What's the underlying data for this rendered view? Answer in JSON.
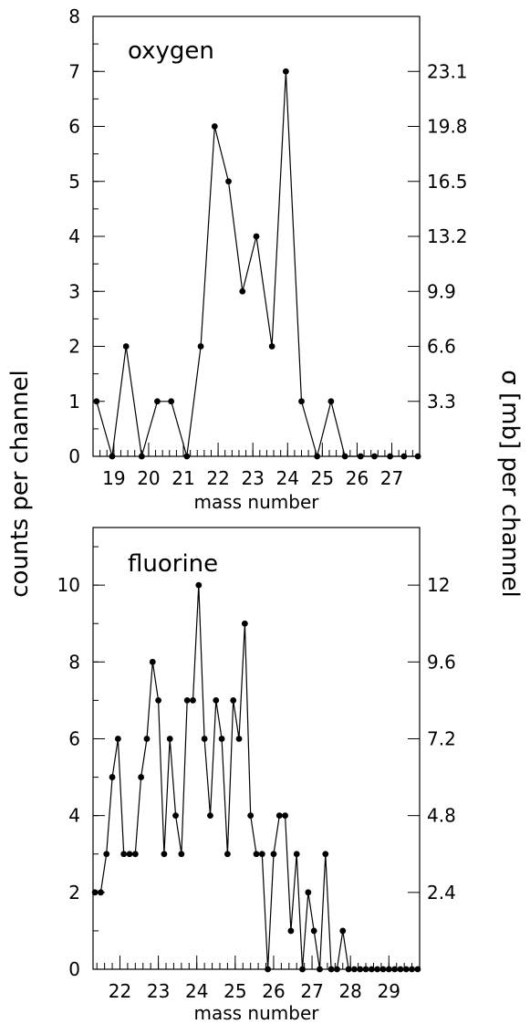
{
  "figure": {
    "left_axis_title": "counts per channel",
    "right_axis_title": "σ [mb] per channel"
  },
  "chart_data": [
    {
      "type": "line",
      "title": "oxygen",
      "xlabel": "mass number",
      "ylabel": "counts per channel",
      "y2label": "σ [mb] per channel",
      "xlim": [
        18.4,
        27.8
      ],
      "ylim": [
        0,
        8
      ],
      "x_ticks": [
        19,
        20,
        21,
        22,
        23,
        24,
        25,
        26,
        27
      ],
      "y_ticks": [
        0,
        1,
        2,
        3,
        4,
        5,
        6,
        7,
        8
      ],
      "y2_ticks": [
        {
          "at": 1,
          "label": "3.3"
        },
        {
          "at": 2,
          "label": "6.6"
        },
        {
          "at": 3,
          "label": "9.9"
        },
        {
          "at": 4,
          "label": "13.2"
        },
        {
          "at": 5,
          "label": "16.5"
        },
        {
          "at": 6,
          "label": "19.8"
        },
        {
          "at": 7,
          "label": "23.1"
        }
      ],
      "series": [
        {
          "x": [
            18.5,
            18.95,
            19.35,
            19.8,
            20.25,
            20.65,
            21.1,
            21.5,
            21.9,
            22.3,
            22.7,
            23.1,
            23.55,
            23.95,
            24.4,
            24.85,
            25.25,
            25.65,
            26.1,
            26.5,
            26.95,
            27.35,
            27.75
          ],
          "y": [
            1,
            0,
            2,
            0,
            1,
            1,
            0,
            2,
            6,
            5,
            3,
            4,
            2,
            7,
            1,
            0,
            1,
            0,
            0,
            0,
            0,
            0,
            0
          ]
        }
      ],
      "grid": false
    },
    {
      "type": "line",
      "title": "fluorine",
      "xlabel": "mass number",
      "ylabel": "counts per channel",
      "y2label": "σ [mb] per channel",
      "xlim": [
        21.3,
        29.8
      ],
      "ylim": [
        0,
        11.5
      ],
      "x_ticks": [
        22,
        23,
        24,
        25,
        26,
        27,
        28,
        29
      ],
      "y_ticks": [
        0,
        2,
        4,
        6,
        8,
        10
      ],
      "y2_ticks": [
        {
          "at": 2,
          "label": "2.4"
        },
        {
          "at": 4,
          "label": "4.8"
        },
        {
          "at": 6,
          "label": "7.2"
        },
        {
          "at": 8,
          "label": "9.6"
        },
        {
          "at": 10,
          "label": "12"
        }
      ],
      "series": [
        {
          "x": [
            21.35,
            21.5,
            21.65,
            21.8,
            21.95,
            22.1,
            22.25,
            22.4,
            22.55,
            22.7,
            22.85,
            23.0,
            23.15,
            23.3,
            23.45,
            23.6,
            23.75,
            23.9,
            24.05,
            24.2,
            24.35,
            24.5,
            24.65,
            24.8,
            24.95,
            25.1,
            25.25,
            25.4,
            25.55,
            25.7,
            25.85,
            26.0,
            26.15,
            26.3,
            26.45,
            26.6,
            26.75,
            26.9,
            27.05,
            27.2,
            27.35,
            27.5,
            27.65,
            27.8,
            27.95,
            28.1,
            28.25,
            28.4,
            28.55,
            28.7,
            28.85,
            29.0,
            29.15,
            29.3,
            29.45,
            29.6,
            29.75
          ],
          "y": [
            2,
            2,
            3,
            5,
            6,
            3,
            3,
            3,
            5,
            6,
            8,
            7,
            3,
            6,
            4,
            3,
            7,
            7,
            10,
            6,
            4,
            7,
            6,
            3,
            7,
            6,
            9,
            4,
            3,
            3,
            0,
            3,
            4,
            4,
            1,
            3,
            0,
            2,
            1,
            0,
            3,
            0,
            0,
            1,
            0,
            0,
            0,
            0,
            0,
            0,
            0,
            0,
            0,
            0,
            0,
            0,
            0
          ]
        }
      ],
      "grid": false
    }
  ]
}
